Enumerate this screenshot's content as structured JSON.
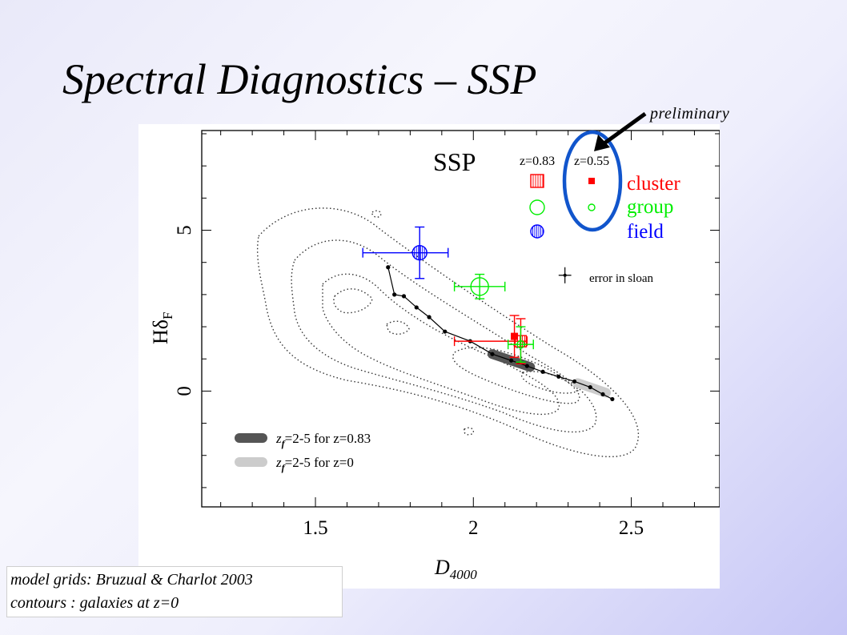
{
  "slide": {
    "title": "Spectral Diagnostics – SSP",
    "tag": "preliminary"
  },
  "caption": {
    "line1": "model grids: Bruzual & Charlot 2003",
    "line2": "contours : galaxies at z=0"
  },
  "colors": {
    "cluster": "#ff0000",
    "group": "#00ee00",
    "field": "#0000ff",
    "ring": "#1155cc"
  },
  "chart_data": {
    "type": "scatter",
    "plot_label": "SSP",
    "xlabel": "D",
    "xlabel_sub": "4000",
    "ylabel": "Hδ",
    "ylabel_sub": "F",
    "xlim": [
      1.14,
      2.78
    ],
    "ylim": [
      -3.6,
      8.1
    ],
    "xticks": [
      1.5,
      2,
      2.5
    ],
    "xtick_labels": [
      "1.5",
      "2",
      "2.5"
    ],
    "yticks": [
      0,
      5
    ],
    "ytick_labels": [
      "0",
      "5"
    ],
    "legend": {
      "col_headers": [
        "z=0.83",
        "z=0.55"
      ],
      "rows": [
        {
          "label": "cluster",
          "color": "#ff0000"
        },
        {
          "label": "group",
          "color": "#00ee00"
        },
        {
          "label": "field",
          "color": "#0000ff"
        }
      ]
    },
    "error_note": "error in sloan",
    "error_sample": {
      "x": 2.29,
      "y": 3.6,
      "xerr": 0.02,
      "yerr": 0.25
    },
    "series": [
      {
        "name": "cluster",
        "z": "0.83",
        "color": "#ff0000",
        "points": [
          {
            "x": 2.15,
            "y": 1.55,
            "xerr_lo": 0.21,
            "xerr_hi": 0.02,
            "yerr": 0.7
          }
        ]
      },
      {
        "name": "cluster",
        "z": "0.55",
        "color": "#ff0000",
        "points": [
          {
            "x": 2.13,
            "y": 1.7,
            "xerr_lo": 0.0,
            "xerr_hi": 0.0,
            "yerr": 0.65
          }
        ]
      },
      {
        "name": "group",
        "z": "0.83",
        "color": "#00ee00",
        "points": [
          {
            "x": 2.02,
            "y": 3.25,
            "xerr_lo": 0.08,
            "xerr_hi": 0.08,
            "yerr": 0.38
          }
        ]
      },
      {
        "name": "group",
        "z": "0.55",
        "color": "#00ee00",
        "points": [
          {
            "x": 2.15,
            "y": 1.45,
            "xerr_lo": 0.04,
            "xerr_hi": 0.04,
            "yerr": 0.55
          }
        ]
      },
      {
        "name": "field",
        "z": "0.83",
        "color": "#0000ff",
        "points": [
          {
            "x": 1.83,
            "y": 4.3,
            "xerr_lo": 0.18,
            "xerr_hi": 0.09,
            "yerr": 0.8
          }
        ]
      }
    ],
    "model_track": [
      [
        1.73,
        3.85
      ],
      [
        1.75,
        3.0
      ],
      [
        1.78,
        2.95
      ],
      [
        1.82,
        2.6
      ],
      [
        1.86,
        2.3
      ],
      [
        1.91,
        1.85
      ],
      [
        1.99,
        1.55
      ],
      [
        2.06,
        1.15
      ],
      [
        2.12,
        0.95
      ],
      [
        2.17,
        0.78
      ],
      [
        2.22,
        0.6
      ],
      [
        2.27,
        0.45
      ],
      [
        2.32,
        0.3
      ],
      [
        2.37,
        0.12
      ],
      [
        2.41,
        -0.1
      ],
      [
        2.44,
        -0.25
      ]
    ],
    "model_bands": [
      {
        "label": "z_f=2-5 for z=0.83",
        "color": "#555555",
        "x": [
          2.06,
          2.18
        ],
        "y": [
          1.15,
          0.75
        ]
      },
      {
        "label": "z_f=2-5 for z=0",
        "color": "#cccccc",
        "x": [
          2.33,
          2.42
        ],
        "y": [
          0.25,
          -0.05
        ]
      }
    ],
    "band_legend": [
      {
        "text": "z_f=2-5 for z=0.83",
        "color": "#555555"
      },
      {
        "text": "z_f=2-5 for z=0",
        "color": "#cccccc"
      }
    ]
  }
}
